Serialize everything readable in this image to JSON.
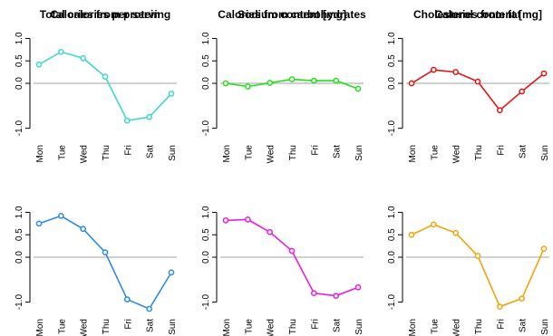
{
  "chart_data": [
    {
      "type": "line",
      "title": "Total calories per serving",
      "categories": [
        "Mon",
        "Tue",
        "Wed",
        "Thu",
        "Fri",
        "Sat",
        "Sun"
      ],
      "values": [
        0.42,
        0.7,
        0.56,
        0.15,
        -0.83,
        -0.75,
        -0.23
      ],
      "color": "#40d9c9",
      "yticks": [
        "1.0",
        "0.5",
        "0.0",
        "-1.0"
      ],
      "ylim": [
        -1.25,
        1.15
      ],
      "zero_line": true
    },
    {
      "type": "line",
      "title": "Calories from carbohydrates",
      "categories": [
        "Mon",
        "Tue",
        "Wed",
        "Thu",
        "Fri",
        "Sat",
        "Sun"
      ],
      "values": [
        0.0,
        -0.07,
        0.01,
        0.09,
        0.06,
        0.06,
        -0.12
      ],
      "color": "#22e01a",
      "yticks": [
        "1.0",
        "0.5",
        "0.0",
        "-1.0"
      ],
      "ylim": [
        -1.25,
        1.15
      ],
      "zero_line": true
    },
    {
      "type": "line",
      "title": "Calories from  fat",
      "categories": [
        "Mon",
        "Tue",
        "Wed",
        "Thu",
        "Fri",
        "Sat",
        "Sun"
      ],
      "values": [
        0.0,
        0.3,
        0.25,
        0.04,
        -0.6,
        -0.18,
        0.22
      ],
      "color": "#e51414",
      "yticks": [
        "1.0",
        "0.5",
        "0.0",
        "-1.0"
      ],
      "ylim": [
        -1.25,
        1.15
      ],
      "zero_line": true
    },
    {
      "type": "line",
      "title": "Calories from  protein",
      "categories": [
        "Mon",
        "Tue",
        "Wed",
        "Thu",
        "Fri",
        "Sat",
        "Sun"
      ],
      "values": [
        0.75,
        0.92,
        0.63,
        0.11,
        -0.94,
        -1.15,
        -0.34
      ],
      "color": "#2b8be6",
      "yticks": [
        "1.0",
        "0.5",
        "0.0",
        "-1.0"
      ],
      "ylim": [
        -1.25,
        1.15
      ],
      "zero_line": true
    },
    {
      "type": "line",
      "title": "Sodium content [mg]",
      "categories": [
        "Mon",
        "Tue",
        "Wed",
        "Thu",
        "Fri",
        "Sat",
        "Sun"
      ],
      "values": [
        0.82,
        0.84,
        0.56,
        0.14,
        -0.8,
        -0.86,
        -0.67
      ],
      "color": "#e81ce0",
      "yticks": [
        "1.0",
        "0.5",
        "0.0",
        "-1.0"
      ],
      "ylim": [
        -1.25,
        1.15
      ],
      "zero_line": true
    },
    {
      "type": "line",
      "title": "Cholesterol content [mg]",
      "categories": [
        "Mon",
        "Tue",
        "Wed",
        "Thu",
        "Fri",
        "Sat",
        "Sun"
      ],
      "values": [
        0.5,
        0.73,
        0.54,
        0.03,
        -1.1,
        -0.92,
        0.19
      ],
      "color": "#f2a30a",
      "yticks": [
        "1.0",
        "0.5",
        "0.0",
        "-1.0"
      ],
      "ylim": [
        -1.25,
        1.15
      ],
      "zero_line": true
    }
  ]
}
